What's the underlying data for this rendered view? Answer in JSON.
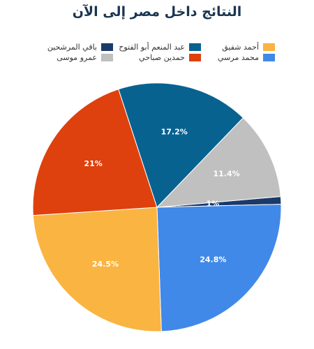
{
  "chart_data": {
    "type": "pie",
    "title": "النتائج داخل مصر إلى الآن",
    "legend_position": "top",
    "slices": [
      {
        "name": "باقي المرشحين",
        "value": 1,
        "label": "1%",
        "color": "#1b3a6b"
      },
      {
        "name": "محمد مرسي",
        "value": 24.8,
        "label": "24.8%",
        "color": "#4189e8"
      },
      {
        "name": "أحمد شفيق",
        "value": 24.5,
        "label": "24.5%",
        "color": "#fab442"
      },
      {
        "name": "حمدين صباحي",
        "value": 21,
        "label": "21%",
        "color": "#de410d"
      },
      {
        "name": "عبد المنعم أبو الفتوح",
        "value": 17.2,
        "label": "17.2%",
        "color": "#086290"
      },
      {
        "name": "عمرو موسى",
        "value": 11.4,
        "label": "11.4%",
        "color": "#c0c0c0"
      }
    ]
  }
}
